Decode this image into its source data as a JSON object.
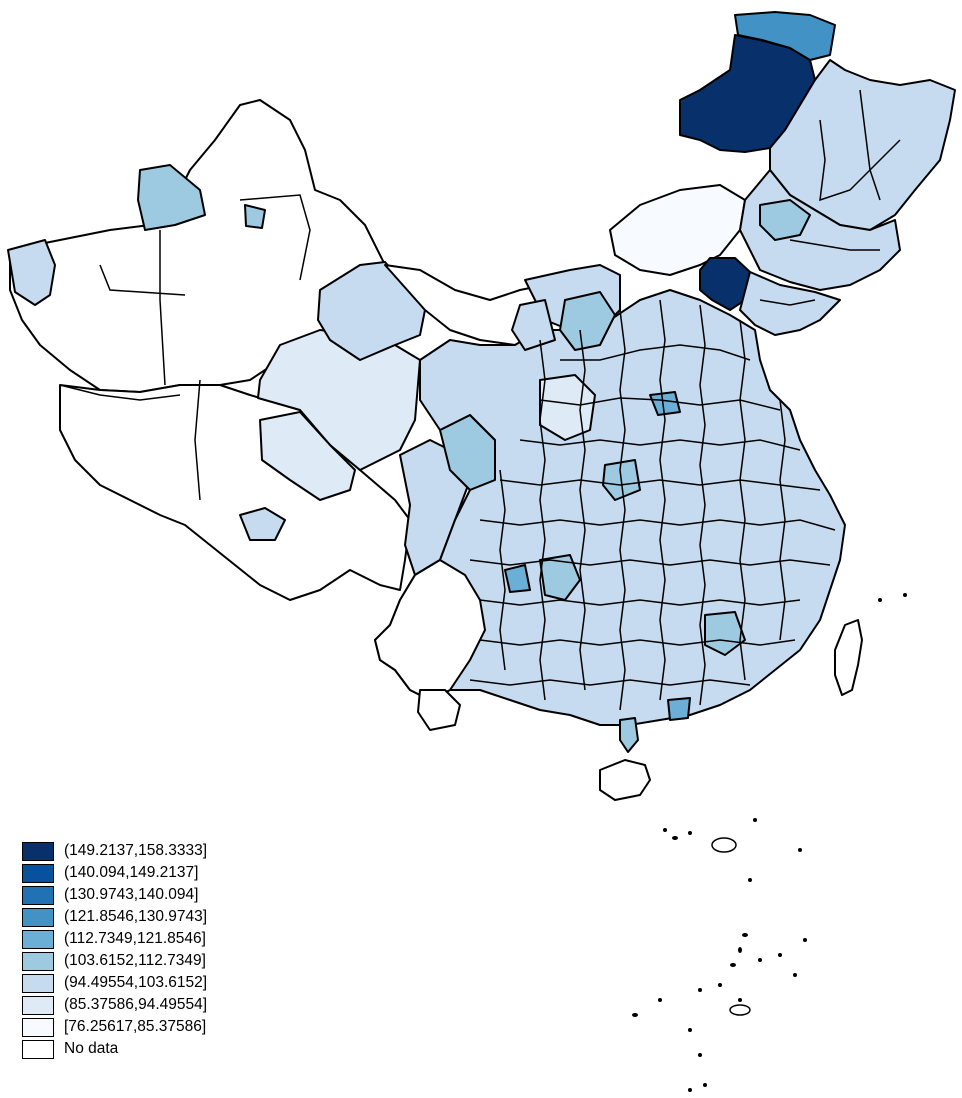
{
  "legend": {
    "items": [
      {
        "label": "(149.2137,158.3333]",
        "color": "#08306b"
      },
      {
        "label": "(140.094,149.2137]",
        "color": "#08519c"
      },
      {
        "label": "(130.9743,140.094]",
        "color": "#2171b5"
      },
      {
        "label": "(121.8546,130.9743]",
        "color": "#4292c6"
      },
      {
        "label": "(112.7349,121.8546]",
        "color": "#6baed6"
      },
      {
        "label": "(103.6152,112.7349]",
        "color": "#9ecae1"
      },
      {
        "label": "(94.49554,103.6152]",
        "color": "#c6dbef"
      },
      {
        "label": "(85.37586,94.49554]",
        "color": "#deebf7"
      },
      {
        "label": "[76.25617,85.37586]",
        "color": "#f7fbff"
      },
      {
        "label": "No data",
        "color": "#ffffff"
      }
    ]
  },
  "map_colors": {
    "class_1": "#08306b",
    "class_4": "#4292c6",
    "class_5": "#6baed6",
    "class_6": "#9ecae1",
    "class_7": "#c6dbef",
    "class_8": "#deebf7",
    "class_9": "#f7fbff",
    "no_data": "#ffffff"
  }
}
